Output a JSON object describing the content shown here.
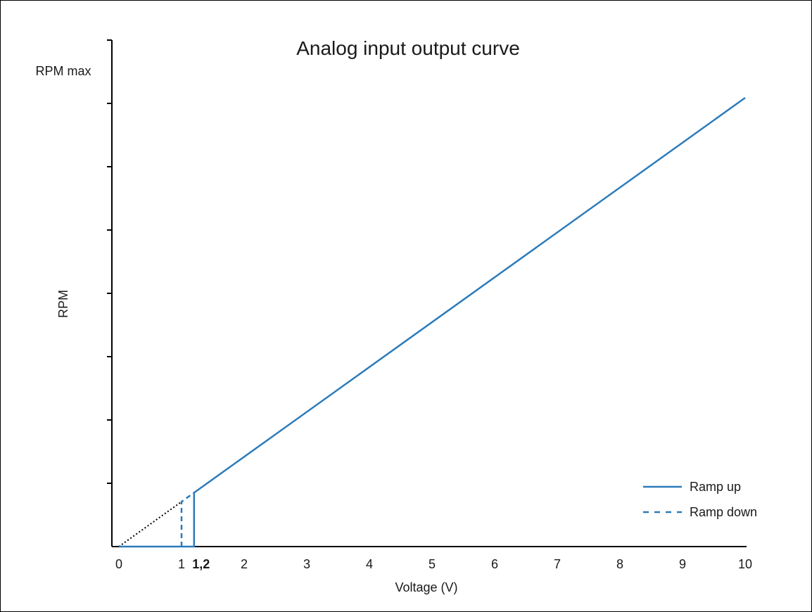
{
  "chart_data": {
    "type": "line",
    "title": "Analog input output curve",
    "xlabel": "Voltage (V)",
    "ylabel": "RPM",
    "y_top_label": "RPM max",
    "x_ticks": [
      {
        "value": 0,
        "label": "0",
        "bold": false
      },
      {
        "value": 1,
        "label": "1",
        "bold": false
      },
      {
        "value": 1.2,
        "label": "1,2",
        "bold": true
      },
      {
        "value": 2,
        "label": "2",
        "bold": false
      },
      {
        "value": 3,
        "label": "3",
        "bold": false
      },
      {
        "value": 4,
        "label": "4",
        "bold": false
      },
      {
        "value": 5,
        "label": "5",
        "bold": false
      },
      {
        "value": 6,
        "label": "6",
        "bold": false
      },
      {
        "value": 7,
        "label": "7",
        "bold": false
      },
      {
        "value": 8,
        "label": "8",
        "bold": false
      },
      {
        "value": 9,
        "label": "9",
        "bold": false
      },
      {
        "value": 10,
        "label": "10",
        "bold": false
      }
    ],
    "xlim": [
      -0.1,
      10
    ],
    "ylim": [
      0,
      1.1
    ],
    "y_tick_count": 7,
    "grid": false,
    "series": [
      {
        "name": "Ramp up",
        "style": "solid",
        "color": "#2b7bba",
        "points": [
          [
            0,
            0
          ],
          [
            1.2,
            0
          ],
          [
            1.2,
            0.12
          ],
          [
            10,
            1
          ]
        ]
      },
      {
        "name": "Ramp down",
        "style": "dashed",
        "color": "#2b7bba",
        "points": [
          [
            1,
            0
          ],
          [
            1,
            0.1
          ],
          [
            1.2,
            0.12
          ]
        ]
      }
    ],
    "extrapolation": {
      "style": "dotted",
      "color": "#000000",
      "points": [
        [
          0,
          0
        ],
        [
          1,
          0.1
        ]
      ]
    },
    "legend": {
      "position": "bottom-right",
      "entries": [
        {
          "label": "Ramp up",
          "style": "solid"
        },
        {
          "label": "Ramp down",
          "style": "dashed"
        }
      ]
    }
  }
}
